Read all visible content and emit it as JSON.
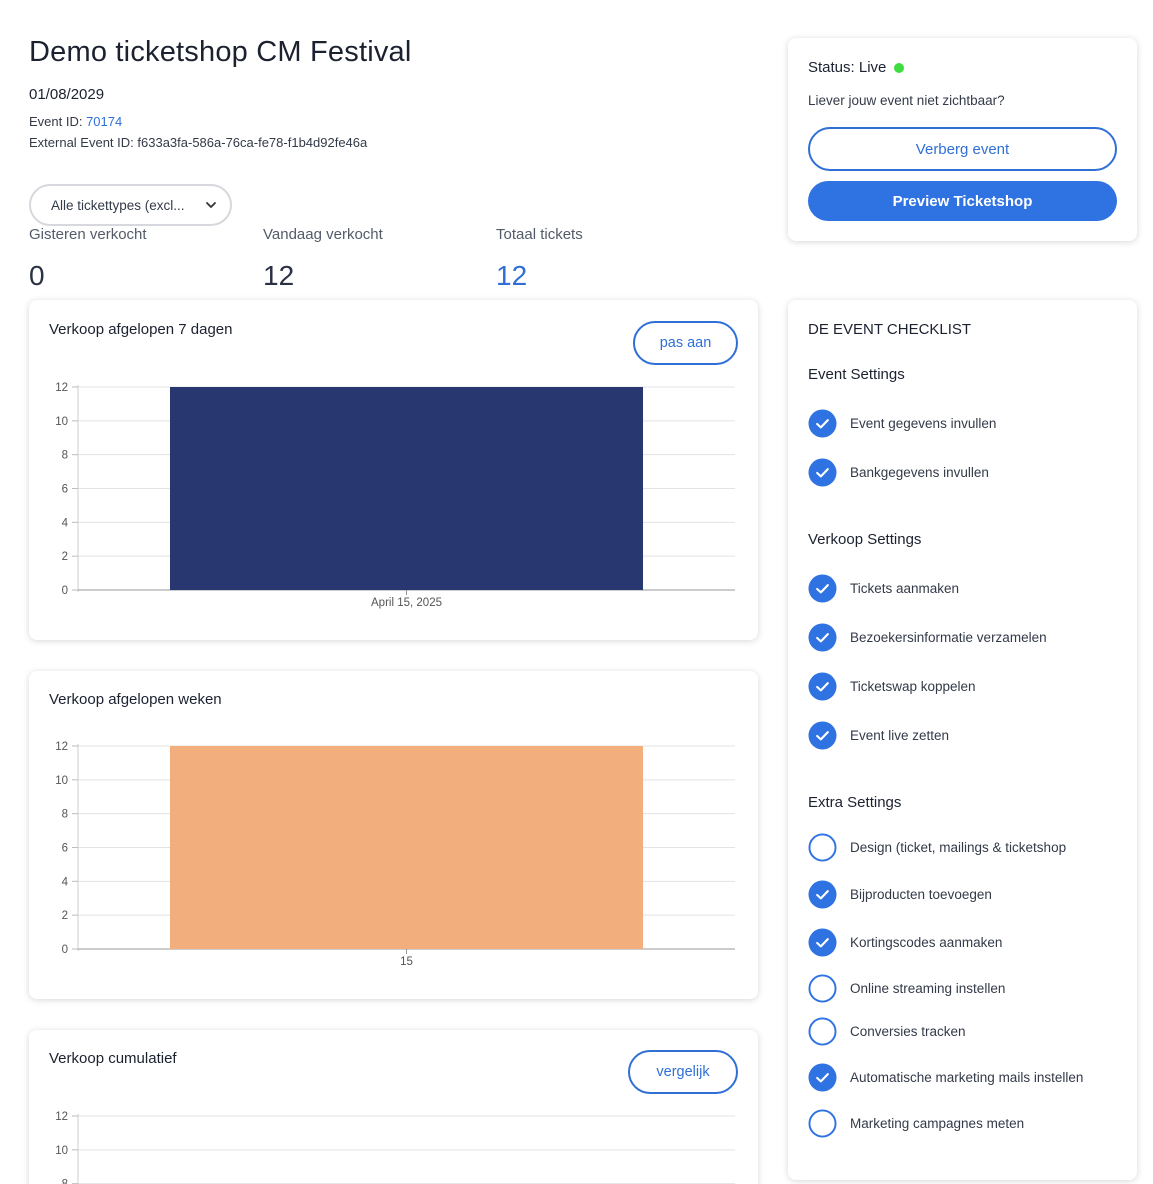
{
  "header": {
    "title": "Demo ticketshop CM Festival",
    "date": "01/08/2029",
    "event_id_label": "Event ID: ",
    "event_id_value": "70174",
    "external_id_label": "External Event ID: ",
    "external_id_value": "f633a3fa-586a-76ca-fe78-f1b4d92fe46a"
  },
  "filter": {
    "selected": "Alle tickettypes (excl..."
  },
  "stats": [
    {
      "label": "Gisteren verkocht",
      "value": "0"
    },
    {
      "label": "Vandaag verkocht",
      "value": "12"
    },
    {
      "label": "Totaal tickets",
      "value": "12"
    }
  ],
  "status_card": {
    "status_label": "Status: Live",
    "status_color": "#3fdc3f",
    "hide_question": "Liever jouw event niet zichtbaar?",
    "hide_button": "Verberg event",
    "preview_button": "Preview Ticketshop"
  },
  "charts": {
    "last7": {
      "title": "Verkoop afgelopen 7 dagen",
      "button": "pas aan"
    },
    "weeks": {
      "title": "Verkoop afgelopen weken"
    },
    "cumulative": {
      "title": "Verkoop cumulatief",
      "button": "vergelijk"
    }
  },
  "chart_data": [
    {
      "type": "bar",
      "title": "Verkoop afgelopen 7 dagen",
      "categories": [
        "April 15, 2025"
      ],
      "values": [
        12
      ],
      "ylim": [
        0,
        12
      ],
      "yticks": [
        0,
        2,
        4,
        6,
        8,
        10,
        12
      ],
      "color": "#283770",
      "grid": true
    },
    {
      "type": "bar",
      "title": "Verkoop afgelopen weken",
      "categories": [
        "15"
      ],
      "values": [
        12
      ],
      "ylim": [
        0,
        12
      ],
      "yticks": [
        0,
        2,
        4,
        6,
        8,
        10,
        12
      ],
      "color": "#f2ae7c",
      "grid": true
    },
    {
      "type": "line",
      "title": "Verkoop cumulatief",
      "ylim": [
        0,
        12
      ],
      "yticks": [
        8,
        10,
        12
      ],
      "grid": true
    }
  ],
  "checklist": {
    "heading": "DE EVENT CHECKLIST",
    "sections": [
      {
        "title": "Event Settings",
        "items": [
          {
            "label": "Event gegevens invullen",
            "done": true
          },
          {
            "label": "Bankgegevens invullen",
            "done": true
          }
        ]
      },
      {
        "title": "Verkoop Settings",
        "items": [
          {
            "label": "Tickets aanmaken",
            "done": true
          },
          {
            "label": "Bezoekersinformatie verzamelen",
            "done": true
          },
          {
            "label": "Ticketswap koppelen",
            "done": true
          },
          {
            "label": "Event live zetten",
            "done": true
          }
        ]
      },
      {
        "title": "Extra Settings",
        "items": [
          {
            "label": "Design (ticket, mailings & ticketshop",
            "done": false
          },
          {
            "label": "Bijproducten toevoegen",
            "done": true
          },
          {
            "label": "Kortingscodes aanmaken",
            "done": true
          },
          {
            "label": "Online streaming instellen",
            "done": false
          },
          {
            "label": "Conversies tracken",
            "done": false
          },
          {
            "label": "Automatische marketing mails instellen",
            "done": true
          },
          {
            "label": "Marketing campagnes meten",
            "done": false
          }
        ]
      }
    ]
  },
  "colors": {
    "accent": "#2f6fd6",
    "check_fill": "#2f72e2"
  }
}
